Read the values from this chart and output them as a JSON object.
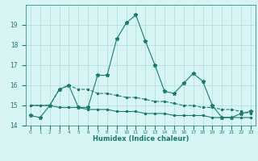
{
  "xlabel": "Humidex (Indice chaleur)",
  "x": [
    0,
    1,
    2,
    3,
    4,
    5,
    6,
    7,
    8,
    9,
    10,
    11,
    12,
    13,
    14,
    15,
    16,
    17,
    18,
    19,
    20,
    21,
    22,
    23
  ],
  "line1": [
    14.5,
    14.4,
    15.0,
    15.8,
    16.0,
    14.9,
    14.9,
    16.5,
    16.5,
    18.3,
    19.1,
    19.5,
    18.2,
    17.0,
    15.7,
    15.6,
    16.1,
    16.6,
    16.2,
    15.0,
    14.4,
    14.4,
    14.6,
    14.7
  ],
  "line2": [
    15.0,
    15.0,
    15.0,
    15.8,
    16.0,
    15.8,
    15.8,
    15.6,
    15.6,
    15.5,
    15.4,
    15.4,
    15.3,
    15.2,
    15.2,
    15.1,
    15.0,
    15.0,
    14.9,
    14.9,
    14.8,
    14.8,
    14.7,
    14.6
  ],
  "line3": [
    15.0,
    15.0,
    15.0,
    14.9,
    14.9,
    14.9,
    14.8,
    14.8,
    14.8,
    14.7,
    14.7,
    14.7,
    14.6,
    14.6,
    14.6,
    14.5,
    14.5,
    14.5,
    14.5,
    14.4,
    14.4,
    14.4,
    14.4,
    14.4
  ],
  "ylim": [
    14,
    20
  ],
  "yticks": [
    14,
    15,
    16,
    17,
    18,
    19
  ],
  "color": "#1a7a6e",
  "bg_color": "#d8f5f5",
  "grid_color": "#b0dada",
  "linewidth": 0.8,
  "markersize": 2.0
}
